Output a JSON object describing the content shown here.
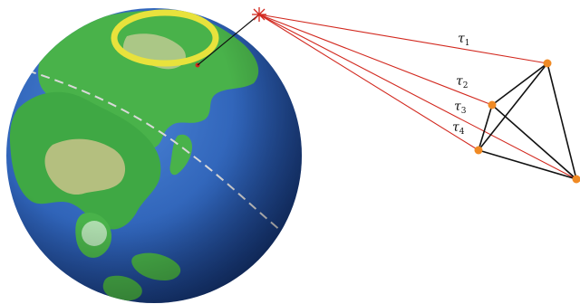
{
  "globe": {
    "ocean_color": "#2f63b8",
    "land_color": "#49b24a",
    "highland_color": "#c9c38a",
    "ring_color": "#e8e23c",
    "orbit_track_color": "#d9d9d9"
  },
  "source": {
    "icon": "star-burst-icon",
    "color": "#d2281e"
  },
  "delay_labels": [
    {
      "symbol": "τ",
      "subscript": "1"
    },
    {
      "symbol": "τ",
      "subscript": "2"
    },
    {
      "symbol": "τ",
      "subscript": "3"
    },
    {
      "symbol": "τ",
      "subscript": "4"
    }
  ],
  "signal_path_color": "#d2281e",
  "baseline_color": "#111111",
  "station_color": "#f08a24"
}
